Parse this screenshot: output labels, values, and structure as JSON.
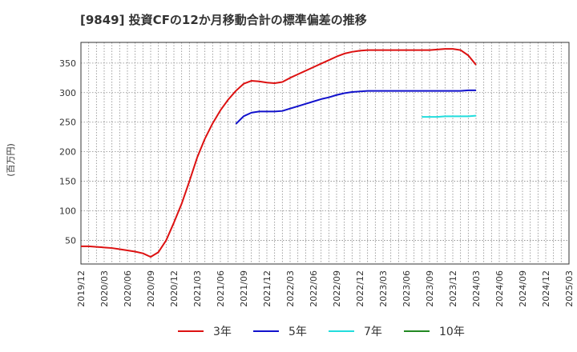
{
  "chart_data": {
    "type": "line",
    "title": "[9849]  投資CFの12か月移動合計の標準偏差の推移",
    "ylabel": "(百万円)",
    "xlabel": "",
    "ylim": [
      10,
      385
    ],
    "yticks": [
      50,
      100,
      150,
      200,
      250,
      300,
      350
    ],
    "x_ticks": [
      "2019/12",
      "2020/03",
      "2020/06",
      "2020/09",
      "2020/12",
      "2021/03",
      "2021/06",
      "2021/09",
      "2021/12",
      "2022/03",
      "2022/06",
      "2022/09",
      "2022/12",
      "2023/03",
      "2023/06",
      "2023/09",
      "2023/12",
      "2024/03",
      "2024/06",
      "2024/09",
      "2024/12",
      "2025/03"
    ],
    "grid": true,
    "legend_position": "bottom",
    "series": [
      {
        "name": "3年",
        "color": "#dd1111",
        "points": [
          [
            "2019/12",
            40
          ],
          [
            "2020/01",
            40
          ],
          [
            "2020/02",
            39
          ],
          [
            "2020/03",
            38
          ],
          [
            "2020/04",
            37
          ],
          [
            "2020/05",
            35
          ],
          [
            "2020/06",
            33
          ],
          [
            "2020/07",
            31
          ],
          [
            "2020/08",
            28
          ],
          [
            "2020/09",
            22
          ],
          [
            "2020/10",
            30
          ],
          [
            "2020/11",
            50
          ],
          [
            "2020/12",
            80
          ],
          [
            "2021/01",
            112
          ],
          [
            "2021/02",
            150
          ],
          [
            "2021/03",
            190
          ],
          [
            "2021/04",
            222
          ],
          [
            "2021/05",
            248
          ],
          [
            "2021/06",
            270
          ],
          [
            "2021/07",
            288
          ],
          [
            "2021/08",
            303
          ],
          [
            "2021/09",
            315
          ],
          [
            "2021/10",
            320
          ],
          [
            "2021/11",
            319
          ],
          [
            "2021/12",
            317
          ],
          [
            "2022/01",
            316
          ],
          [
            "2022/02",
            318
          ],
          [
            "2022/03",
            325
          ],
          [
            "2022/04",
            331
          ],
          [
            "2022/05",
            337
          ],
          [
            "2022/06",
            343
          ],
          [
            "2022/07",
            349
          ],
          [
            "2022/08",
            355
          ],
          [
            "2022/09",
            361
          ],
          [
            "2022/10",
            366
          ],
          [
            "2022/11",
            369
          ],
          [
            "2022/12",
            371
          ],
          [
            "2023/01",
            372
          ],
          [
            "2023/02",
            372
          ],
          [
            "2023/03",
            372
          ],
          [
            "2023/04",
            372
          ],
          [
            "2023/05",
            372
          ],
          [
            "2023/06",
            372
          ],
          [
            "2023/07",
            372
          ],
          [
            "2023/08",
            372
          ],
          [
            "2023/09",
            372
          ],
          [
            "2023/10",
            373
          ],
          [
            "2023/11",
            374
          ],
          [
            "2023/12",
            374
          ],
          [
            "2024/01",
            372
          ],
          [
            "2024/02",
            363
          ],
          [
            "2024/03",
            347
          ]
        ]
      },
      {
        "name": "5年",
        "color": "#1111cc",
        "points": [
          [
            "2021/08",
            247
          ],
          [
            "2021/09",
            260
          ],
          [
            "2021/10",
            266
          ],
          [
            "2021/11",
            268
          ],
          [
            "2021/12",
            268
          ],
          [
            "2022/01",
            268
          ],
          [
            "2022/02",
            269
          ],
          [
            "2022/03",
            273
          ],
          [
            "2022/04",
            277
          ],
          [
            "2022/05",
            281
          ],
          [
            "2022/06",
            285
          ],
          [
            "2022/07",
            289
          ],
          [
            "2022/08",
            292
          ],
          [
            "2022/09",
            296
          ],
          [
            "2022/10",
            299
          ],
          [
            "2022/11",
            301
          ],
          [
            "2022/12",
            302
          ],
          [
            "2023/01",
            303
          ],
          [
            "2023/02",
            303
          ],
          [
            "2023/03",
            303
          ],
          [
            "2023/04",
            303
          ],
          [
            "2023/05",
            303
          ],
          [
            "2023/06",
            303
          ],
          [
            "2023/07",
            303
          ],
          [
            "2023/08",
            303
          ],
          [
            "2023/09",
            303
          ],
          [
            "2023/10",
            303
          ],
          [
            "2023/11",
            303
          ],
          [
            "2023/12",
            303
          ],
          [
            "2024/01",
            303
          ],
          [
            "2024/02",
            304
          ],
          [
            "2024/03",
            304
          ]
        ]
      },
      {
        "name": "7年",
        "color": "#22dddd",
        "points": [
          [
            "2023/08",
            259
          ],
          [
            "2023/09",
            259
          ],
          [
            "2023/10",
            259
          ],
          [
            "2023/11",
            260
          ],
          [
            "2023/12",
            260
          ],
          [
            "2024/01",
            260
          ],
          [
            "2024/02",
            260
          ],
          [
            "2024/03",
            261
          ]
        ]
      },
      {
        "name": "10年",
        "color": "#228822",
        "points": []
      }
    ]
  }
}
